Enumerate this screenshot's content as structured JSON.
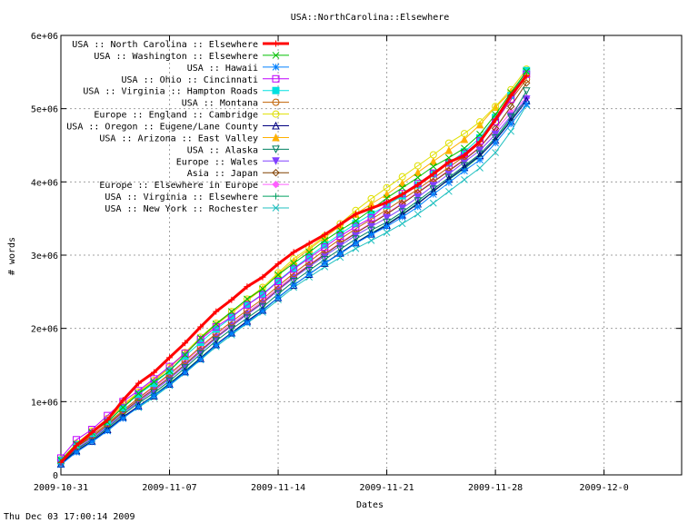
{
  "page": {
    "footer_timestamp": "Thu Dec 03 17:00:14 2009"
  },
  "chart_data": {
    "type": "line",
    "title": "USA::NorthCarolina::Elsewhere",
    "xlabel": "Dates",
    "ylabel": "# words",
    "x_range_days": [
      0,
      40
    ],
    "x_origin_date": "2009-10-31",
    "x_ticks": [
      {
        "day": 0,
        "label": "2009-10-31"
      },
      {
        "day": 7,
        "label": "2009-11-07"
      },
      {
        "day": 14,
        "label": "2009-11-14"
      },
      {
        "day": 21,
        "label": "2009-11-21"
      },
      {
        "day": 28,
        "label": "2009-11-28"
      },
      {
        "day": 35,
        "label": "2009-12-0"
      }
    ],
    "ylim": [
      0,
      6000000
    ],
    "y_ticks": [
      {
        "value": 0,
        "label": "0"
      },
      {
        "value": 1000000,
        "label": "1e+06"
      },
      {
        "value": 2000000,
        "label": "2e+06"
      },
      {
        "value": 3000000,
        "label": "3e+06"
      },
      {
        "value": 4000000,
        "label": "4e+06"
      },
      {
        "value": 5000000,
        "label": "5e+06"
      },
      {
        "value": 6000000,
        "label": "6e+06"
      }
    ],
    "grid": true,
    "legend_position": "top-left",
    "x_days": [
      0,
      1,
      2,
      3,
      4,
      5,
      6,
      7,
      8,
      9,
      10,
      11,
      12,
      13,
      14,
      15,
      16,
      17,
      18,
      19,
      20,
      21,
      22,
      23,
      24,
      25,
      26,
      27,
      28,
      29,
      30
    ],
    "series": [
      {
        "name": "USA :: North Carolina :: Elsewhere",
        "color": "#ff0000",
        "marker": "plus",
        "width": 3,
        "values": [
          170000,
          400000,
          580000,
          750000,
          1020000,
          1250000,
          1400000,
          1600000,
          1800000,
          2020000,
          2230000,
          2390000,
          2570000,
          2700000,
          2880000,
          3040000,
          3160000,
          3280000,
          3420000,
          3560000,
          3640000,
          3720000,
          3830000,
          3960000,
          4110000,
          4270000,
          4360000,
          4550000,
          4850000,
          5180000,
          5450000
        ]
      },
      {
        "name": "USA :: Washington :: Elsewhere",
        "color": "#00c000",
        "marker": "cross",
        "width": 1,
        "values": [
          200000,
          420000,
          580000,
          720000,
          920000,
          1110000,
          1270000,
          1420000,
          1640000,
          1870000,
          2060000,
          2230000,
          2400000,
          2540000,
          2730000,
          2890000,
          3040000,
          3200000,
          3340000,
          3470000,
          3620000,
          3780000,
          3920000,
          4060000,
          4210000,
          4330000,
          4460000,
          4650000,
          4920000,
          5220000,
          5510000
        ]
      },
      {
        "name": "USA :: Hawaii",
        "color": "#0080ff",
        "marker": "star",
        "width": 1,
        "values": [
          140000,
          310000,
          450000,
          600000,
          770000,
          930000,
          1080000,
          1230000,
          1400000,
          1580000,
          1770000,
          1930000,
          2080000,
          2240000,
          2420000,
          2590000,
          2740000,
          2890000,
          3020000,
          3160000,
          3280000,
          3390000,
          3520000,
          3660000,
          3830000,
          3990000,
          4150000,
          4300000,
          4530000,
          4790000,
          5060000
        ]
      },
      {
        "name": "USA :: Ohio :: Cincinnati",
        "color": "#c000ff",
        "marker": "square-open",
        "width": 1,
        "values": [
          230000,
          480000,
          620000,
          810000,
          1000000,
          1150000,
          1310000,
          1480000,
          1660000,
          1850000,
          2020000,
          2160000,
          2320000,
          2460000,
          2640000,
          2810000,
          2960000,
          3110000,
          3260000,
          3390000,
          3510000,
          3700000,
          3840000,
          3980000,
          4120000,
          4260000,
          4390000,
          4560000,
          4820000,
          5130000,
          5470000
        ]
      },
      {
        "name": "USA :: Virginia :: Hampton Roads",
        "color": "#00e0e0",
        "marker": "square-filled",
        "width": 1,
        "values": [
          200000,
          410000,
          570000,
          730000,
          920000,
          1100000,
          1250000,
          1420000,
          1620000,
          1810000,
          1990000,
          2150000,
          2320000,
          2470000,
          2650000,
          2820000,
          2980000,
          3140000,
          3290000,
          3430000,
          3560000,
          3680000,
          3810000,
          3960000,
          4110000,
          4260000,
          4410000,
          4600000,
          4880000,
          5180000,
          5520000
        ]
      },
      {
        "name": "USA :: Montana",
        "color": "#c06000",
        "marker": "circle-open",
        "width": 1,
        "values": [
          190000,
          390000,
          540000,
          700000,
          880000,
          1050000,
          1210000,
          1380000,
          1560000,
          1750000,
          1930000,
          2090000,
          2250000,
          2400000,
          2580000,
          2750000,
          2910000,
          3070000,
          3220000,
          3360000,
          3490000,
          3620000,
          3760000,
          3900000,
          4050000,
          4200000,
          4350000,
          4540000,
          4820000,
          5120000,
          5400000
        ]
      },
      {
        "name": "Europe :: England :: Cambridge",
        "color": "#e0e000",
        "marker": "circle-open",
        "width": 1,
        "values": [
          210000,
          430000,
          600000,
          770000,
          960000,
          1130000,
          1290000,
          1470000,
          1670000,
          1880000,
          2070000,
          2230000,
          2400000,
          2560000,
          2760000,
          2950000,
          3100000,
          3260000,
          3430000,
          3610000,
          3770000,
          3920000,
          4070000,
          4220000,
          4370000,
          4530000,
          4660000,
          4820000,
          5030000,
          5260000,
          5540000
        ]
      },
      {
        "name": "USA :: Oregon :: Eugene/Lane County",
        "color": "#000080",
        "marker": "triangle-open",
        "width": 1,
        "values": [
          150000,
          330000,
          460000,
          620000,
          790000,
          940000,
          1080000,
          1240000,
          1410000,
          1590000,
          1780000,
          1940000,
          2100000,
          2250000,
          2420000,
          2590000,
          2740000,
          2890000,
          3030000,
          3170000,
          3290000,
          3410000,
          3550000,
          3700000,
          3870000,
          4040000,
          4200000,
          4360000,
          4570000,
          4830000,
          5110000
        ]
      },
      {
        "name": "USA :: Arizona :: East Valley",
        "color": "#ffb000",
        "marker": "triangle-filled",
        "width": 1,
        "values": [
          200000,
          420000,
          590000,
          750000,
          940000,
          1120000,
          1280000,
          1460000,
          1660000,
          1860000,
          2050000,
          2210000,
          2380000,
          2540000,
          2740000,
          2920000,
          3080000,
          3240000,
          3400000,
          3560000,
          3700000,
          3830000,
          3980000,
          4130000,
          4280000,
          4430000,
          4580000,
          4780000,
          5020000,
          5230000,
          5480000
        ]
      },
      {
        "name": "USA :: Alaska",
        "color": "#008060",
        "marker": "triangle-down-open",
        "width": 1,
        "values": [
          160000,
          350000,
          480000,
          640000,
          820000,
          980000,
          1120000,
          1280000,
          1460000,
          1650000,
          1830000,
          1990000,
          2140000,
          2290000,
          2470000,
          2640000,
          2790000,
          2940000,
          3080000,
          3220000,
          3340000,
          3450000,
          3590000,
          3740000,
          3900000,
          4060000,
          4220000,
          4380000,
          4600000,
          4880000,
          5240000
        ]
      },
      {
        "name": "Europe :: Wales",
        "color": "#8040ff",
        "marker": "triangle-down-filled",
        "width": 1,
        "values": [
          170000,
          360000,
          500000,
          660000,
          840000,
          1000000,
          1150000,
          1310000,
          1490000,
          1680000,
          1870000,
          2030000,
          2190000,
          2340000,
          2520000,
          2690000,
          2840000,
          2990000,
          3130000,
          3270000,
          3390000,
          3510000,
          3640000,
          3790000,
          3950000,
          4110000,
          4270000,
          4430000,
          4650000,
          4900000,
          5130000
        ]
      },
      {
        "name": "Asia :: Japan",
        "color": "#804000",
        "marker": "diamond-open",
        "width": 1,
        "values": [
          180000,
          380000,
          520000,
          680000,
          860000,
          1020000,
          1170000,
          1330000,
          1510000,
          1700000,
          1880000,
          2040000,
          2200000,
          2350000,
          2530000,
          2700000,
          2860000,
          3010000,
          3160000,
          3300000,
          3430000,
          3560000,
          3700000,
          3850000,
          4000000,
          4150000,
          4300000,
          4470000,
          4730000,
          5030000,
          5350000
        ]
      },
      {
        "name": "Europe :: Elsewhere in Europe",
        "color": "#ff60ff",
        "marker": "diamond-filled",
        "width": 1,
        "values": [
          190000,
          390000,
          540000,
          700000,
          880000,
          1040000,
          1190000,
          1360000,
          1540000,
          1730000,
          1910000,
          2060000,
          2220000,
          2370000,
          2550000,
          2720000,
          2870000,
          3020000,
          3170000,
          3310000,
          3440000,
          3570000,
          3710000,
          3860000,
          4010000,
          4160000,
          4310000,
          4480000,
          4700000,
          4950000,
          5150000
        ]
      },
      {
        "name": "USA :: Virginia :: Elsewhere",
        "color": "#00a060",
        "marker": "plus",
        "width": 1,
        "values": [
          150000,
          330000,
          460000,
          620000,
          790000,
          940000,
          1090000,
          1250000,
          1420000,
          1600000,
          1780000,
          1940000,
          2100000,
          2250000,
          2420000,
          2590000,
          2740000,
          2890000,
          3030000,
          3170000,
          3300000,
          3420000,
          3560000,
          3710000,
          3870000,
          4030000,
          4180000,
          4350000,
          4580000,
          4850000,
          5140000
        ]
      },
      {
        "name": "USA :: New York :: Rochester",
        "color": "#20c0c0",
        "marker": "cross",
        "width": 1,
        "values": [
          150000,
          320000,
          450000,
          610000,
          780000,
          920000,
          1060000,
          1220000,
          1390000,
          1570000,
          1750000,
          1910000,
          2070000,
          2220000,
          2390000,
          2560000,
          2700000,
          2840000,
          2970000,
          3090000,
          3200000,
          3310000,
          3430000,
          3560000,
          3710000,
          3870000,
          4030000,
          4190000,
          4400000,
          4690000,
          5050000
        ]
      }
    ]
  }
}
